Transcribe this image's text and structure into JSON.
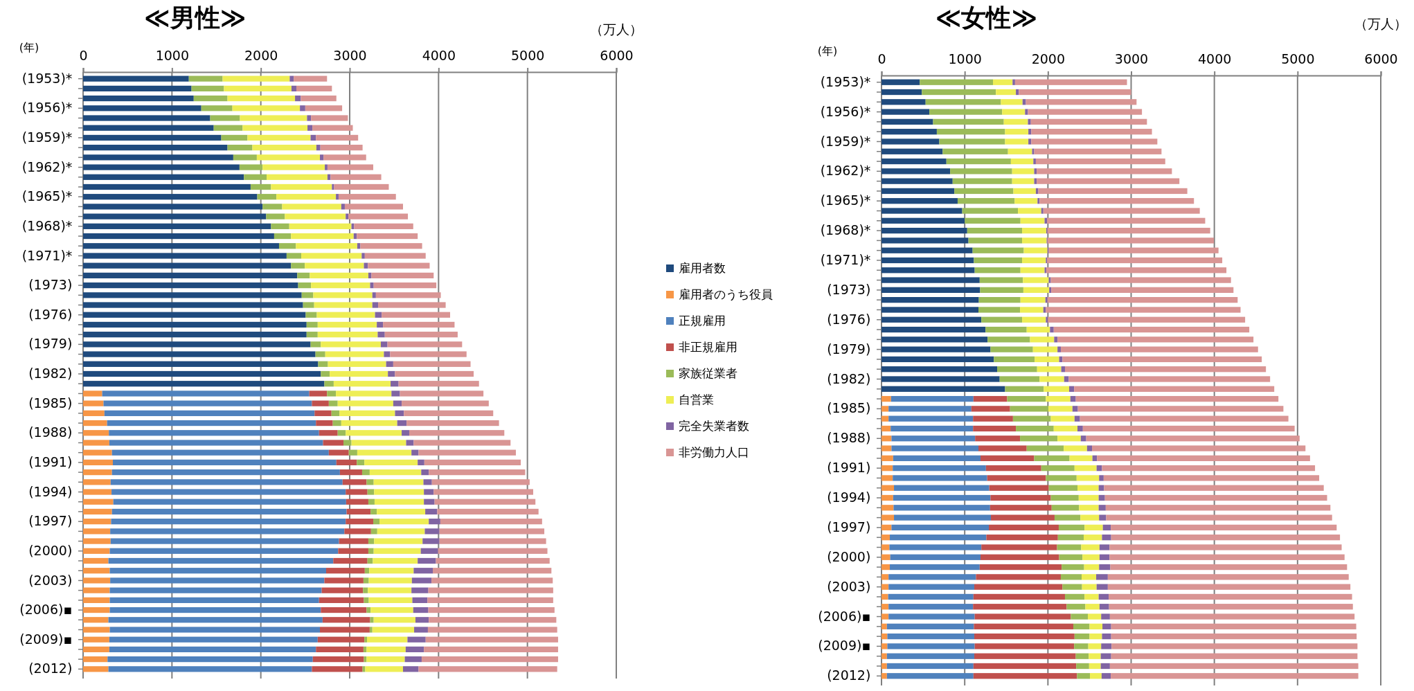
{
  "chart_data": [
    {
      "type": "bar",
      "orientation": "horizontal",
      "stacked": true,
      "title": "≪男性≫",
      "xlabel": "（万人）",
      "ylabel": "(年)",
      "xlim": [
        0,
        6000
      ],
      "xticks": [
        0,
        1000,
        2000,
        3000,
        4000,
        5000,
        6000
      ],
      "grid": "x",
      "legend": "right",
      "categories": [
        "(1953)*",
        null,
        null,
        "(1956)*",
        null,
        null,
        "(1959)*",
        null,
        null,
        "(1962)*",
        null,
        null,
        "(1965)*",
        null,
        null,
        "(1968)*",
        null,
        null,
        "(1971)*",
        null,
        null,
        "(1973)",
        null,
        null,
        "(1976)",
        null,
        null,
        "(1979)",
        null,
        null,
        "(1982)",
        null,
        null,
        "(1985)",
        null,
        null,
        "(1988)",
        null,
        null,
        "(1991)",
        null,
        null,
        "(1994)",
        null,
        null,
        "(1997)",
        null,
        null,
        "(2000)",
        null,
        null,
        "(2003)",
        null,
        null,
        "(2006)▪",
        null,
        null,
        "(2009)▪",
        null,
        null,
        "(2012)"
      ],
      "series": [
        {
          "name": "雇用者数",
          "color": "#1f4a7d",
          "values": [
            1190,
            1220,
            1245,
            1330,
            1430,
            1470,
            1555,
            1625,
            1690,
            1760,
            1810,
            1885,
            1960,
            2020,
            2060,
            2115,
            2150,
            2205,
            2290,
            2340,
            2410,
            2420,
            2460,
            2475,
            2505,
            2515,
            2515,
            2560,
            2615,
            2645,
            2675,
            2715,
            null,
            null,
            null,
            null,
            null,
            null,
            null,
            null,
            null,
            null,
            null,
            null,
            null,
            null,
            null,
            null,
            null,
            null,
            null,
            null,
            null,
            null,
            null,
            null,
            null,
            null,
            null,
            null,
            null
          ]
        },
        {
          "name": "雇用者のうち役員",
          "color": "#f79646",
          "values": [
            null,
            null,
            null,
            null,
            null,
            null,
            null,
            null,
            null,
            null,
            null,
            null,
            null,
            null,
            null,
            null,
            null,
            null,
            null,
            null,
            null,
            null,
            null,
            null,
            null,
            null,
            null,
            null,
            null,
            null,
            null,
            null,
            215,
            230,
            240,
            270,
            290,
            295,
            325,
            335,
            325,
            310,
            320,
            340,
            325,
            315,
            305,
            310,
            300,
            285,
            300,
            305,
            300,
            300,
            300,
            285,
            300,
            295,
            295,
            275,
            285
          ]
        },
        {
          "name": "正規雇用",
          "color": "#4f81bd",
          "values": [
            null,
            null,
            null,
            null,
            null,
            null,
            null,
            null,
            null,
            null,
            null,
            null,
            null,
            null,
            null,
            null,
            null,
            null,
            null,
            null,
            null,
            null,
            null,
            null,
            null,
            null,
            null,
            null,
            null,
            null,
            null,
            null,
            2330,
            2345,
            2365,
            2350,
            2365,
            2405,
            2440,
            2515,
            2565,
            2610,
            2635,
            2620,
            2640,
            2640,
            2635,
            2570,
            2570,
            2530,
            2435,
            2410,
            2385,
            2355,
            2375,
            2410,
            2365,
            2345,
            2325,
            2310,
            2290
          ]
        },
        {
          "name": "非正規雇用",
          "color": "#c0504d",
          "values": [
            null,
            null,
            null,
            null,
            null,
            null,
            null,
            null,
            null,
            null,
            null,
            null,
            null,
            null,
            null,
            null,
            null,
            null,
            null,
            null,
            null,
            null,
            null,
            null,
            null,
            null,
            null,
            null,
            null,
            null,
            null,
            null,
            200,
            190,
            190,
            190,
            210,
            230,
            225,
            230,
            250,
            270,
            245,
            250,
            270,
            310,
            300,
            330,
            340,
            385,
            435,
            440,
            465,
            505,
            515,
            535,
            560,
            525,
            535,
            575,
            570
          ]
        },
        {
          "name": "家族従業者",
          "color": "#9bbb59",
          "values": [
            380,
            365,
            380,
            350,
            335,
            325,
            295,
            280,
            265,
            260,
            255,
            230,
            215,
            220,
            210,
            205,
            190,
            190,
            165,
            155,
            140,
            145,
            130,
            125,
            125,
            125,
            125,
            115,
            110,
            110,
            100,
            105,
            100,
            100,
            90,
            95,
            90,
            90,
            95,
            85,
            85,
            80,
            75,
            70,
            70,
            70,
            70,
            65,
            60,
            60,
            50,
            60,
            55,
            55,
            45,
            40,
            30,
            30,
            35,
            30,
            30
          ]
        },
        {
          "name": "自営業",
          "color": "#eeee55",
          "values": [
            755,
            760,
            760,
            760,
            755,
            730,
            710,
            720,
            710,
            700,
            685,
            685,
            670,
            665,
            685,
            700,
            705,
            690,
            680,
            665,
            660,
            665,
            665,
            655,
            655,
            665,
            675,
            675,
            660,
            655,
            655,
            640,
            625,
            625,
            625,
            630,
            630,
            615,
            610,
            600,
            580,
            560,
            560,
            555,
            545,
            555,
            535,
            545,
            530,
            505,
            500,
            485,
            490,
            490,
            480,
            470,
            470,
            455,
            440,
            430,
            425
          ]
        },
        {
          "name": "完全失業者数",
          "color": "#8064a2",
          "values": [
            45,
            55,
            65,
            60,
            45,
            55,
            60,
            45,
            40,
            30,
            35,
            25,
            30,
            40,
            30,
            30,
            35,
            35,
            35,
            45,
            35,
            40,
            40,
            65,
            75,
            70,
            80,
            75,
            70,
            80,
            80,
            90,
            95,
            95,
            100,
            105,
            85,
            85,
            80,
            75,
            85,
            95,
            110,
            120,
            135,
            130,
            165,
            190,
            195,
            205,
            215,
            220,
            190,
            170,
            170,
            150,
            155,
            205,
            205,
            190,
            175
          ]
        },
        {
          "name": "非労働力人口",
          "color": "#d99594",
          "values": [
            375,
            400,
            400,
            415,
            415,
            455,
            475,
            475,
            480,
            515,
            570,
            615,
            645,
            655,
            670,
            665,
            685,
            695,
            685,
            695,
            700,
            705,
            730,
            760,
            770,
            805,
            820,
            840,
            860,
            870,
            885,
            905,
            940,
            980,
            1005,
            1040,
            1070,
            1090,
            1095,
            1085,
            1085,
            1100,
            1120,
            1135,
            1140,
            1145,
            1180,
            1200,
            1230,
            1280,
            1335,
            1365,
            1405,
            1415,
            1420,
            1435,
            1455,
            1490,
            1510,
            1535,
            1560
          ]
        }
      ]
    },
    {
      "type": "bar",
      "orientation": "horizontal",
      "stacked": true,
      "title": "≪女性≫",
      "xlabel": "（万人）",
      "ylabel": "(年)",
      "xlim": [
        0,
        6000
      ],
      "xticks": [
        0,
        1000,
        2000,
        3000,
        4000,
        5000,
        6000
      ],
      "grid": "x",
      "categories": [
        "(1953)*",
        null,
        null,
        "(1956)*",
        null,
        null,
        "(1959)*",
        null,
        null,
        "(1962)*",
        null,
        null,
        "(1965)*",
        null,
        null,
        "(1968)*",
        null,
        null,
        "(1971)*",
        null,
        null,
        "(1973)",
        null,
        null,
        "(1976)",
        null,
        null,
        "(1979)",
        null,
        null,
        "(1982)",
        null,
        null,
        "(1985)",
        null,
        null,
        "(1988)",
        null,
        null,
        "(1991)",
        null,
        null,
        "(1994)",
        null,
        null,
        "(1997)",
        null,
        null,
        "(2000)",
        null,
        null,
        "(2003)",
        null,
        null,
        "(2006)▪",
        null,
        null,
        "(2009)▪",
        null,
        null,
        "(2012)"
      ],
      "series": [
        {
          "color": "#1f4a7d",
          "values": [
            460,
            485,
            530,
            575,
            620,
            665,
            695,
            735,
            780,
            825,
            855,
            875,
            915,
            970,
            1000,
            1030,
            1045,
            1095,
            1110,
            1120,
            1180,
            1185,
            1170,
            1165,
            1200,
            1250,
            1275,
            1310,
            1350,
            1390,
            1420,
            1485,
            null,
            null,
            null,
            null,
            null,
            null,
            null,
            null,
            null,
            null,
            null,
            null,
            null,
            null,
            null,
            null,
            null,
            null,
            null,
            null,
            null,
            null,
            null,
            null,
            null,
            null,
            null,
            null,
            null
          ]
        },
        {
          "color": "#f79646",
          "values": [
            null,
            null,
            null,
            null,
            null,
            null,
            null,
            null,
            null,
            null,
            null,
            null,
            null,
            null,
            null,
            null,
            null,
            null,
            null,
            null,
            null,
            null,
            null,
            null,
            null,
            null,
            null,
            null,
            null,
            null,
            null,
            null,
            115,
            85,
            85,
            110,
            120,
            120,
            140,
            135,
            135,
            150,
            140,
            145,
            150,
            120,
            100,
            95,
            105,
            100,
            85,
            85,
            80,
            85,
            85,
            65,
            70,
            70,
            65,
            65,
            65
          ]
        },
        {
          "color": "#4f81bd",
          "values": [
            null,
            null,
            null,
            null,
            null,
            null,
            null,
            null,
            null,
            null,
            null,
            null,
            null,
            null,
            null,
            null,
            null,
            null,
            null,
            null,
            null,
            null,
            null,
            null,
            null,
            null,
            null,
            null,
            null,
            null,
            null,
            null,
            990,
            995,
            1015,
            990,
            1005,
            1045,
            1050,
            1120,
            1135,
            1145,
            1170,
            1160,
            1165,
            1170,
            1160,
            1105,
            1085,
            1080,
            1050,
            1030,
            1025,
            1015,
            1035,
            1045,
            1045,
            1050,
            1050,
            1040,
            1040
          ]
        },
        {
          "color": "#c0504d",
          "values": [
            null,
            null,
            null,
            null,
            null,
            null,
            null,
            null,
            null,
            null,
            null,
            null,
            null,
            null,
            null,
            null,
            null,
            null,
            null,
            null,
            null,
            null,
            null,
            null,
            null,
            null,
            null,
            null,
            null,
            null,
            null,
            null,
            405,
            465,
            480,
            515,
            540,
            580,
            645,
            665,
            705,
            715,
            725,
            740,
            765,
            840,
            860,
            910,
            945,
            985,
            1020,
            1060,
            1100,
            1125,
            1155,
            1195,
            1205,
            1195,
            1220,
            1235,
            1245
          ]
        },
        {
          "color": "#9bbb59",
          "values": [
            880,
            890,
            905,
            875,
            850,
            820,
            790,
            785,
            775,
            745,
            715,
            710,
            685,
            670,
            670,
            660,
            645,
            615,
            580,
            550,
            520,
            520,
            500,
            500,
            490,
            495,
            510,
            510,
            490,
            480,
            480,
            465,
            465,
            460,
            455,
            455,
            450,
            445,
            425,
            400,
            370,
            345,
            335,
            330,
            310,
            310,
            310,
            290,
            280,
            270,
            250,
            235,
            235,
            225,
            205,
            195,
            180,
            170,
            155,
            155,
            155
          ]
        },
        {
          "color": "#eeee55",
          "values": [
            235,
            240,
            260,
            275,
            290,
            280,
            280,
            290,
            270,
            265,
            265,
            270,
            275,
            280,
            290,
            290,
            295,
            285,
            285,
            290,
            310,
            310,
            300,
            280,
            285,
            280,
            290,
            295,
            295,
            290,
            295,
            305,
            295,
            290,
            285,
            285,
            280,
            280,
            275,
            265,
            270,
            255,
            240,
            235,
            225,
            220,
            220,
            220,
            205,
            180,
            175,
            175,
            170,
            170,
            160,
            155,
            150,
            155,
            145,
            140,
            140
          ]
        },
        {
          "color": "#8064a2",
          "values": [
            30,
            35,
            40,
            35,
            35,
            35,
            35,
            25,
            30,
            30,
            30,
            30,
            25,
            25,
            30,
            15,
            10,
            15,
            15,
            20,
            25,
            25,
            25,
            30,
            25,
            45,
            40,
            40,
            40,
            45,
            55,
            60,
            65,
            65,
            65,
            65,
            65,
            60,
            55,
            65,
            55,
            65,
            75,
            85,
            85,
            95,
            110,
            120,
            120,
            135,
            140,
            135,
            120,
            115,
            105,
            105,
            110,
            125,
            125,
            110,
            110
          ]
        },
        {
          "color": "#d99594",
          "values": [
            1345,
            1350,
            1330,
            1370,
            1395,
            1450,
            1515,
            1530,
            1555,
            1625,
            1715,
            1790,
            1855,
            1880,
            1900,
            1955,
            2000,
            2040,
            2105,
            2165,
            2165,
            2190,
            2285,
            2340,
            2370,
            2350,
            2355,
            2370,
            2395,
            2415,
            2420,
            2405,
            2435,
            2470,
            2505,
            2545,
            2565,
            2565,
            2560,
            2560,
            2590,
            2640,
            2670,
            2700,
            2715,
            2715,
            2750,
            2790,
            2825,
            2845,
            2895,
            2915,
            2925,
            2930,
            2940,
            2945,
            2950,
            2955,
            2960,
            2985,
            2975
          ]
        }
      ]
    }
  ]
}
